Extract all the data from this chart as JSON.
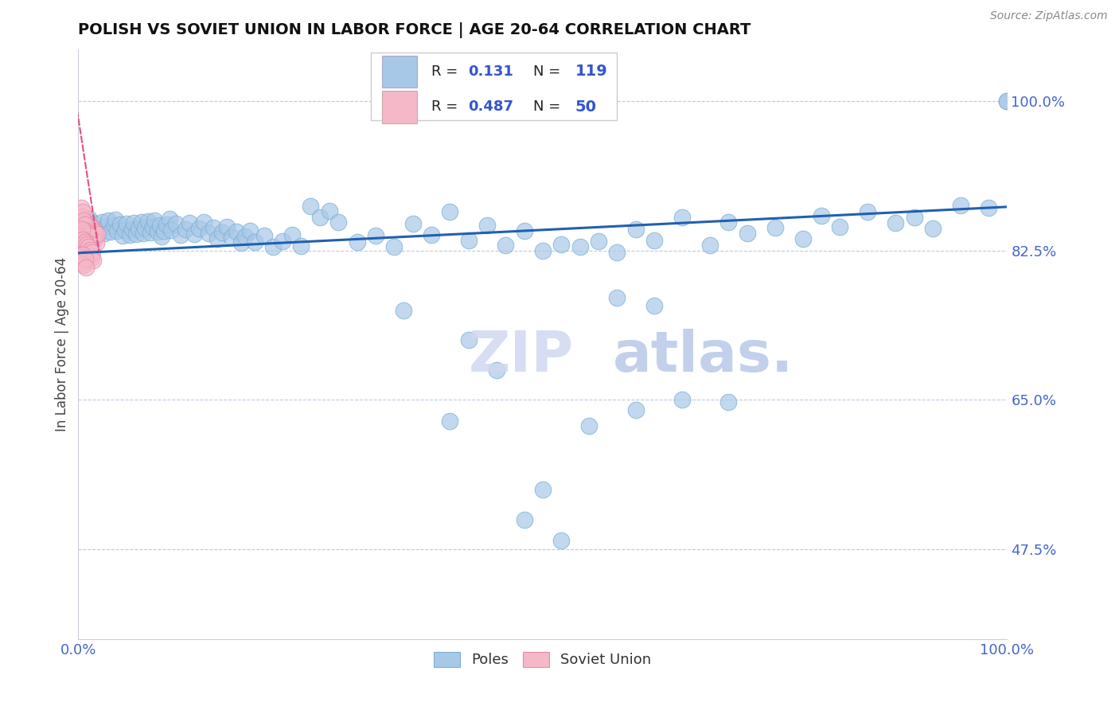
{
  "title": "POLISH VS SOVIET UNION IN LABOR FORCE | AGE 20-64 CORRELATION CHART",
  "source": "Source: ZipAtlas.com",
  "ylabel": "In Labor Force | Age 20-64",
  "ytick_values": [
    1.0,
    0.825,
    0.65,
    0.475
  ],
  "ytick_labels": [
    "100.0%",
    "82.5%",
    "65.0%",
    "47.5%"
  ],
  "xtick_values": [
    0.0,
    1.0
  ],
  "xtick_labels": [
    "0.0%",
    "100.0%"
  ],
  "xlim": [
    0.0,
    1.0
  ],
  "ylim": [
    0.37,
    1.06
  ],
  "blue_R": "0.131",
  "blue_N": "119",
  "pink_R": "0.487",
  "pink_N": "50",
  "blue_color": "#a8c8e8",
  "blue_edge_color": "#7bafd4",
  "pink_color": "#f4b8c8",
  "pink_edge_color": "#e888a8",
  "trend_color_blue": "#2060b0",
  "trend_color_pink": "#e05080",
  "legend_text_color": "#3355cc",
  "axis_color": "#4466cc",
  "gridline_color": "#c0c8e0",
  "watermark_color": "#d0d8f0",
  "title_color": "#111111",
  "source_color": "#888888",
  "blue_x": [
    0.01,
    0.012,
    0.015,
    0.018,
    0.02,
    0.022,
    0.025,
    0.028,
    0.03,
    0.032,
    0.035,
    0.038,
    0.04,
    0.042,
    0.045,
    0.048,
    0.05,
    0.052,
    0.055,
    0.058,
    0.06,
    0.062,
    0.065,
    0.068,
    0.07,
    0.072,
    0.075,
    0.078,
    0.08,
    0.082,
    0.085,
    0.088,
    0.09,
    0.092,
    0.095,
    0.098,
    0.1,
    0.105,
    0.11,
    0.115,
    0.12,
    0.125,
    0.13,
    0.135,
    0.14,
    0.145,
    0.15,
    0.155,
    0.16,
    0.165,
    0.17,
    0.175,
    0.18,
    0.185,
    0.19,
    0.2,
    0.21,
    0.22,
    0.23,
    0.24,
    0.25,
    0.26,
    0.27,
    0.28,
    0.3,
    0.32,
    0.34,
    0.36,
    0.38,
    0.4,
    0.42,
    0.44,
    0.46,
    0.48,
    0.5,
    0.52,
    0.54,
    0.56,
    0.58,
    0.6,
    0.62,
    0.65,
    0.68,
    0.7,
    0.72,
    0.75,
    0.78,
    0.8,
    0.82,
    0.85,
    0.88,
    0.9,
    0.92,
    0.95,
    0.98,
    1.0,
    1.0,
    0.35,
    0.45,
    0.4,
    0.55,
    0.6,
    0.65,
    0.48,
    0.52,
    0.5,
    0.58,
    0.62,
    0.7,
    0.42
  ],
  "blue_y": [
    0.855,
    0.862,
    0.848,
    0.856,
    0.843,
    0.85,
    0.858,
    0.845,
    0.853,
    0.86,
    0.847,
    0.854,
    0.861,
    0.848,
    0.855,
    0.842,
    0.849,
    0.856,
    0.843,
    0.85,
    0.857,
    0.844,
    0.851,
    0.858,
    0.845,
    0.852,
    0.859,
    0.846,
    0.853,
    0.86,
    0.847,
    0.854,
    0.841,
    0.848,
    0.855,
    0.862,
    0.849,
    0.856,
    0.843,
    0.85,
    0.857,
    0.844,
    0.851,
    0.858,
    0.845,
    0.852,
    0.839,
    0.846,
    0.853,
    0.84,
    0.847,
    0.834,
    0.841,
    0.848,
    0.835,
    0.842,
    0.829,
    0.836,
    0.843,
    0.83,
    0.877,
    0.864,
    0.871,
    0.858,
    0.835,
    0.842,
    0.829,
    0.856,
    0.843,
    0.87,
    0.837,
    0.854,
    0.831,
    0.848,
    0.825,
    0.832,
    0.829,
    0.836,
    0.823,
    0.85,
    0.837,
    0.864,
    0.831,
    0.858,
    0.845,
    0.852,
    0.839,
    0.866,
    0.853,
    0.87,
    0.857,
    0.864,
    0.851,
    0.878,
    0.875,
    1.0,
    1.0,
    0.755,
    0.685,
    0.625,
    0.62,
    0.638,
    0.65,
    0.51,
    0.485,
    0.545,
    0.77,
    0.76,
    0.648,
    0.72
  ],
  "pink_x": [
    0.002,
    0.003,
    0.004,
    0.005,
    0.006,
    0.007,
    0.008,
    0.009,
    0.01,
    0.011,
    0.012,
    0.013,
    0.014,
    0.015,
    0.016,
    0.017,
    0.018,
    0.019,
    0.02,
    0.003,
    0.004,
    0.005,
    0.006,
    0.007,
    0.008,
    0.009,
    0.01,
    0.011,
    0.012,
    0.013,
    0.002,
    0.003,
    0.004,
    0.005,
    0.006,
    0.007,
    0.008,
    0.009,
    0.01,
    0.011,
    0.012,
    0.013,
    0.014,
    0.015,
    0.016,
    0.004,
    0.005,
    0.006,
    0.007,
    0.008
  ],
  "pink_y": [
    0.858,
    0.848,
    0.862,
    0.855,
    0.845,
    0.852,
    0.842,
    0.849,
    0.839,
    0.846,
    0.856,
    0.843,
    0.853,
    0.84,
    0.85,
    0.837,
    0.847,
    0.834,
    0.844,
    0.875,
    0.865,
    0.87,
    0.86,
    0.855,
    0.848,
    0.838,
    0.845,
    0.835,
    0.842,
    0.832,
    0.83,
    0.84,
    0.85,
    0.838,
    0.828,
    0.835,
    0.825,
    0.832,
    0.822,
    0.829,
    0.819,
    0.826,
    0.816,
    0.823,
    0.813,
    0.81,
    0.82,
    0.808,
    0.815,
    0.805
  ],
  "blue_trend_x0": 0.0,
  "blue_trend_y0": 0.822,
  "blue_trend_x1": 1.0,
  "blue_trend_y1": 0.876,
  "pink_trend_x0": -0.01,
  "pink_trend_y0": 1.05,
  "pink_trend_x1": 0.022,
  "pink_trend_y1": 0.825
}
